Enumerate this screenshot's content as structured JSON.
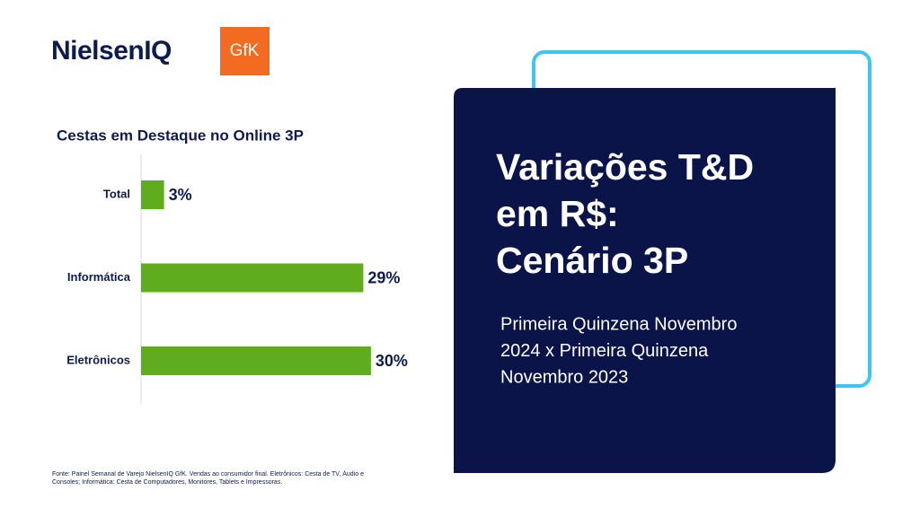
{
  "logos": {
    "nielseniq": "NielsenIQ",
    "gfk": "GfK"
  },
  "chart_data": {
    "type": "bar",
    "orientation": "horizontal",
    "title": "Cestas em Destaque no Online 3P",
    "categories": [
      "Total",
      "Informática",
      "Eletrônicos"
    ],
    "values": [
      3,
      29,
      30
    ],
    "value_labels": [
      "3%",
      "29%",
      "30%"
    ],
    "color": "#5fad1f"
  },
  "panel": {
    "title_lines": [
      "Variações T&D",
      "em R$:",
      "Cenário 3P"
    ],
    "subtitle_lines": [
      "Primeira Quinzena Novembro",
      "2024 x Primeira Quinzena",
      "Novembro 2023"
    ]
  },
  "footnote_lines": [
    "Fonte: Painel Semanal de Varejo NielsenIQ GfK. Vendas ao consumidor final. Eletrônicos: Cesta de TV, Áudio e",
    "Consoles; Informática: Cesta de Computadores, Monitores, Tablets e Impressoras."
  ]
}
